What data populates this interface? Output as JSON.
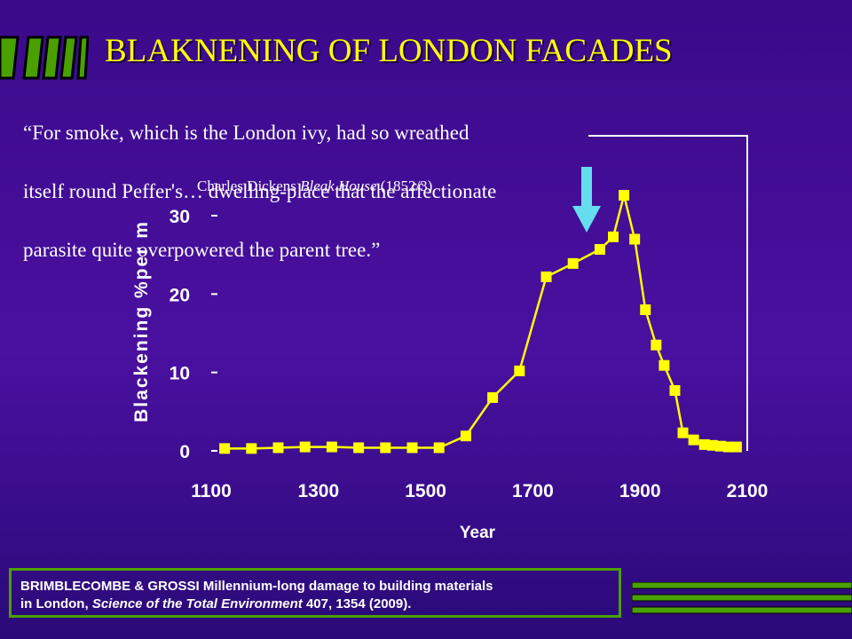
{
  "slide": {
    "title": "BLAKNENING OF LONDON FACADES",
    "quote_lines": [
      "“For smoke, which is the London ivy, had so wreathed",
      "itself round Peffer's… dwelling-place that the affectionate",
      "parasite quite overpowered the parent tree.”"
    ],
    "attribution": {
      "author": "Charles Dickens",
      "work": "Bleak House",
      "year": "(1852/3)"
    },
    "reference": {
      "line1": "BRIMBLECOMBE & GROSSI Millennium-long damage to building materials",
      "line2_prefix": "in London, ",
      "journal": "Science of the Total Environment",
      "line2_suffix": " 407, 1354 (2009)."
    },
    "colors": {
      "background": "#3a0a8a",
      "title": "#ffff00",
      "series": "#ffff00",
      "arrow": "#66ddee",
      "accent_green": "#4aa000",
      "text": "#ffffff"
    }
  },
  "chart_data": {
    "type": "line",
    "title": "",
    "xlabel": "Year",
    "ylabel": "Blackening  %per m",
    "xlim": [
      1100,
      2100
    ],
    "ylim": [
      0,
      30
    ],
    "xticks": [
      1100,
      1300,
      1500,
      1700,
      1900,
      2100
    ],
    "yticks": [
      0,
      10,
      20,
      30
    ],
    "grid": false,
    "legend": "none",
    "annotation": {
      "type": "down-arrow",
      "x": 1800,
      "icon": "down-arrow-icon"
    },
    "series": [
      {
        "x": [
          1125,
          1175,
          1225,
          1275,
          1325,
          1375,
          1425,
          1475,
          1525,
          1575,
          1625,
          1675,
          1725,
          1775,
          1825,
          1850,
          1870,
          1890,
          1910,
          1930,
          1945,
          1965,
          1980,
          2000,
          2020,
          2035,
          2050,
          2065,
          2080
        ],
        "y": [
          0.3,
          0.3,
          0.4,
          0.5,
          0.5,
          0.4,
          0.4,
          0.4,
          0.4,
          1.9,
          6.8,
          10.2,
          22.2,
          23.9,
          25.7,
          27.3,
          32.6,
          27.0,
          18.0,
          13.5,
          10.9,
          7.7,
          2.3,
          1.4,
          0.8,
          0.7,
          0.6,
          0.5,
          0.5
        ]
      }
    ]
  }
}
